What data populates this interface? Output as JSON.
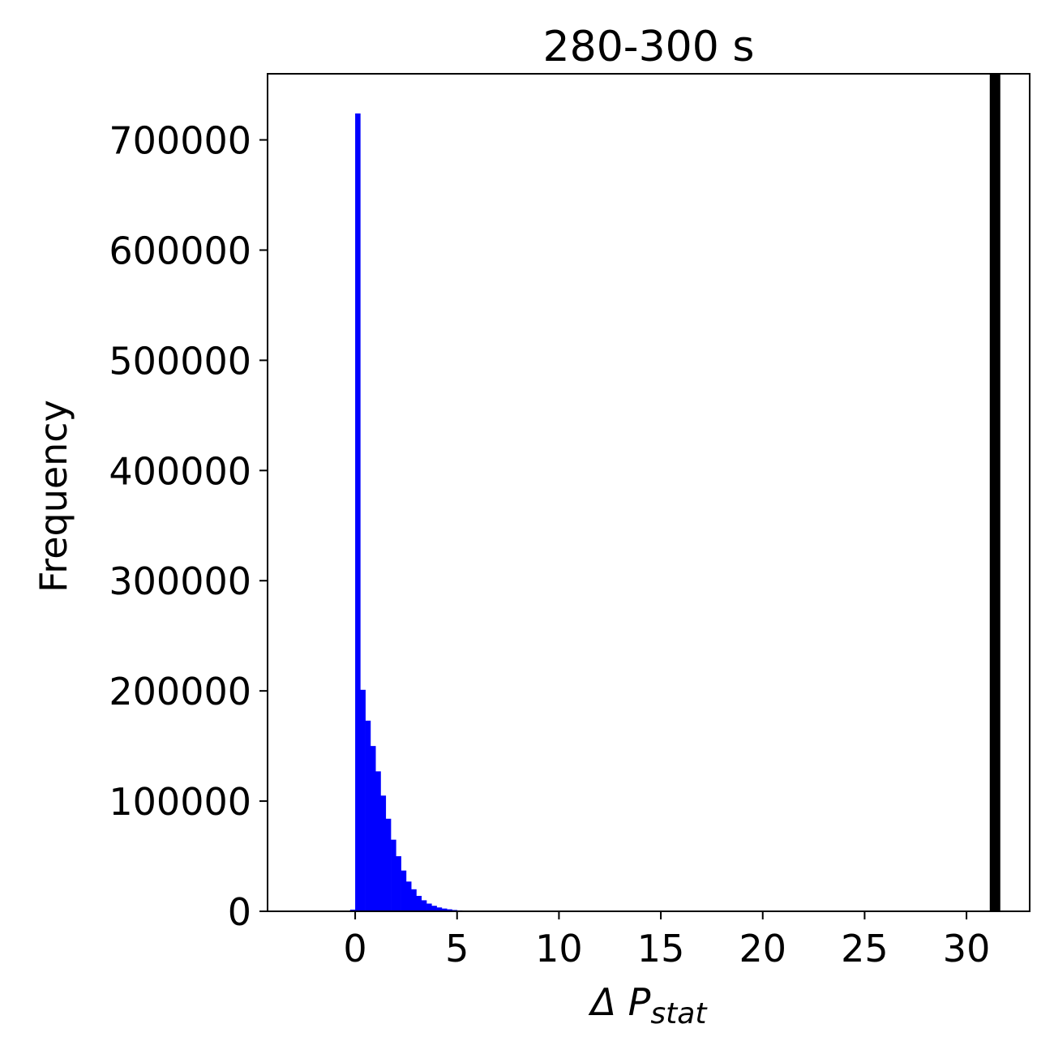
{
  "chart_data": {
    "type": "bar",
    "title": "280-300 s",
    "xlabel_main": "Δ P",
    "xlabel_sub": "stat",
    "ylabel": "Frequency",
    "xlim": [
      -4.3,
      33.1
    ],
    "ylim": [
      0,
      760000
    ],
    "x_ticks": [
      0,
      5,
      10,
      15,
      20,
      25,
      30
    ],
    "x_tick_labels": [
      "0",
      "5",
      "10",
      "15",
      "20",
      "25",
      "30"
    ],
    "y_ticks": [
      0,
      100000,
      200000,
      300000,
      400000,
      500000,
      600000,
      700000
    ],
    "y_tick_labels": [
      "0",
      "100000",
      "200000",
      "300000",
      "400000",
      "500000",
      "600000",
      "700000"
    ],
    "bin_width": 0.25,
    "bins": [
      {
        "x": -0.25,
        "value": 1500
      },
      {
        "x": 0.0,
        "value": 724000
      },
      {
        "x": 0.25,
        "value": 201000
      },
      {
        "x": 0.5,
        "value": 173000
      },
      {
        "x": 0.75,
        "value": 150000
      },
      {
        "x": 1.0,
        "value": 127000
      },
      {
        "x": 1.25,
        "value": 105000
      },
      {
        "x": 1.5,
        "value": 84000
      },
      {
        "x": 1.75,
        "value": 65000
      },
      {
        "x": 2.0,
        "value": 50000
      },
      {
        "x": 2.25,
        "value": 37000
      },
      {
        "x": 2.5,
        "value": 27000
      },
      {
        "x": 2.75,
        "value": 20000
      },
      {
        "x": 3.0,
        "value": 14000
      },
      {
        "x": 3.25,
        "value": 10000
      },
      {
        "x": 3.5,
        "value": 7000
      },
      {
        "x": 3.75,
        "value": 5000
      },
      {
        "x": 4.0,
        "value": 3500
      },
      {
        "x": 4.25,
        "value": 2500
      },
      {
        "x": 4.5,
        "value": 1800
      },
      {
        "x": 4.75,
        "value": 1200
      },
      {
        "x": 5.0,
        "value": 800
      },
      {
        "x": 5.25,
        "value": 500
      }
    ],
    "bar_color": "#0000ff",
    "vline": {
      "x": 31.4,
      "color": "#000000"
    },
    "grid": false,
    "legend": "none"
  }
}
